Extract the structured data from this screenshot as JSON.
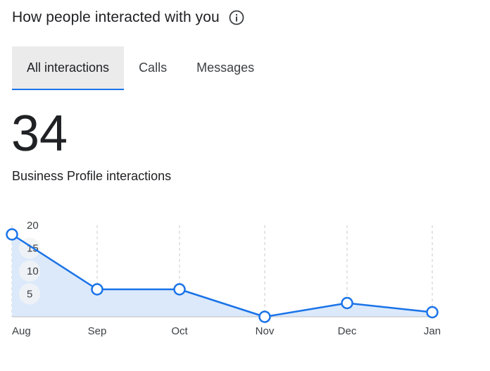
{
  "header": {
    "title": "How people interacted with you",
    "info_icon": "info-icon"
  },
  "tabs": [
    {
      "label": "All interactions",
      "active": true
    },
    {
      "label": "Calls",
      "active": false
    },
    {
      "label": "Messages",
      "active": false
    }
  ],
  "summary": {
    "value": "34",
    "label": "Business Profile interactions"
  },
  "colors": {
    "accent": "#1a73e8",
    "fill": "#dbe9fb",
    "tab_active_bg": "#ebebeb"
  },
  "chart_data": {
    "type": "line",
    "categories": [
      "Aug",
      "Sep",
      "Oct",
      "Nov",
      "Dec",
      "Jan"
    ],
    "values": [
      18,
      6,
      6,
      0,
      3,
      1
    ],
    "ylim": [
      0,
      20
    ],
    "yticks": [
      "20",
      "15",
      "10",
      "5"
    ],
    "area_fill": true,
    "grid": "vertical dashed"
  }
}
